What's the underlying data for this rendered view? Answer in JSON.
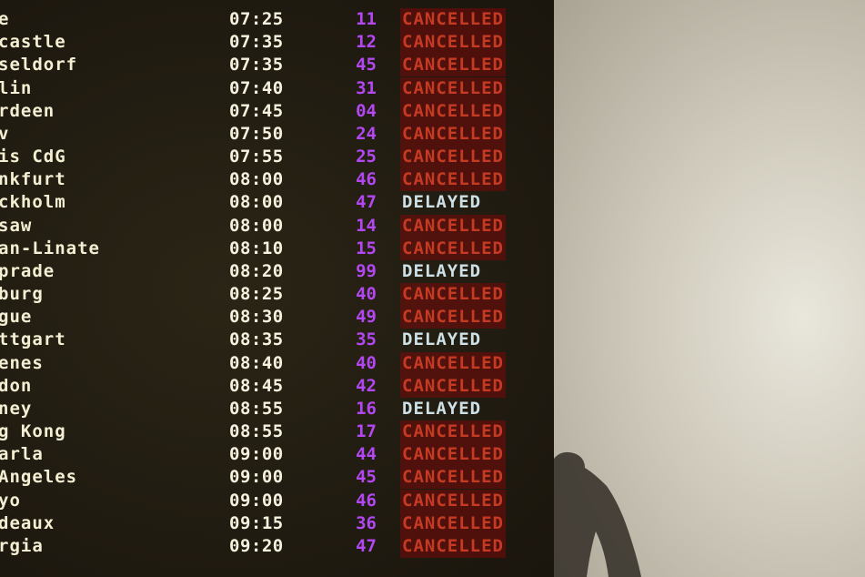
{
  "departures": [
    {
      "destination": "e",
      "time": "07:25",
      "gate": "11",
      "status": "CANCELLED"
    },
    {
      "destination": "castle",
      "time": "07:35",
      "gate": "12",
      "status": "CANCELLED"
    },
    {
      "destination": "seldorf",
      "time": "07:35",
      "gate": "45",
      "status": "CANCELLED"
    },
    {
      "destination": "lin",
      "time": "07:40",
      "gate": "31",
      "status": "CANCELLED"
    },
    {
      "destination": "rdeen",
      "time": "07:45",
      "gate": "04",
      "status": "CANCELLED"
    },
    {
      "destination": "v",
      "time": "07:50",
      "gate": "24",
      "status": "CANCELLED"
    },
    {
      "destination": "is CdG",
      "time": "07:55",
      "gate": "25",
      "status": "CANCELLED"
    },
    {
      "destination": "nkfurt",
      "time": "08:00",
      "gate": "46",
      "status": "CANCELLED"
    },
    {
      "destination": "ckholm",
      "time": "08:00",
      "gate": "47",
      "status": "DELAYED"
    },
    {
      "destination": "saw",
      "time": "08:00",
      "gate": "14",
      "status": "CANCELLED"
    },
    {
      "destination": "an-Linate",
      "time": "08:10",
      "gate": "15",
      "status": "CANCELLED"
    },
    {
      "destination": "prade",
      "time": "08:20",
      "gate": "99",
      "status": "DELAYED"
    },
    {
      "destination": "burg",
      "time": "08:25",
      "gate": "40",
      "status": "CANCELLED"
    },
    {
      "destination": "gue",
      "time": "08:30",
      "gate": "49",
      "status": "CANCELLED"
    },
    {
      "destination": "ttgart",
      "time": "08:35",
      "gate": "35",
      "status": "DELAYED"
    },
    {
      "destination": "enes",
      "time": "08:40",
      "gate": "40",
      "status": "CANCELLED"
    },
    {
      "destination": "don",
      "time": "08:45",
      "gate": "42",
      "status": "CANCELLED"
    },
    {
      "destination": "ney",
      "time": "08:55",
      "gate": "16",
      "status": "DELAYED"
    },
    {
      "destination": "g Kong",
      "time": "08:55",
      "gate": "17",
      "status": "CANCELLED"
    },
    {
      "destination": "arla",
      "time": "09:00",
      "gate": "44",
      "status": "CANCELLED"
    },
    {
      "destination": " Angeles",
      "time": "09:00",
      "gate": "45",
      "status": "CANCELLED"
    },
    {
      "destination": "yo",
      "time": "09:00",
      "gate": "46",
      "status": "CANCELLED"
    },
    {
      "destination": "deaux",
      "time": "09:15",
      "gate": "36",
      "status": "CANCELLED"
    },
    {
      "destination": "rgia",
      "time": "09:20",
      "gate": "47",
      "status": "CANCELLED"
    }
  ],
  "colors": {
    "text": "#f4efd2",
    "gate": "#b347f2",
    "cancelled": "#c53a22",
    "delayed": "#cde0e6",
    "wall": "#d8d4c6"
  }
}
